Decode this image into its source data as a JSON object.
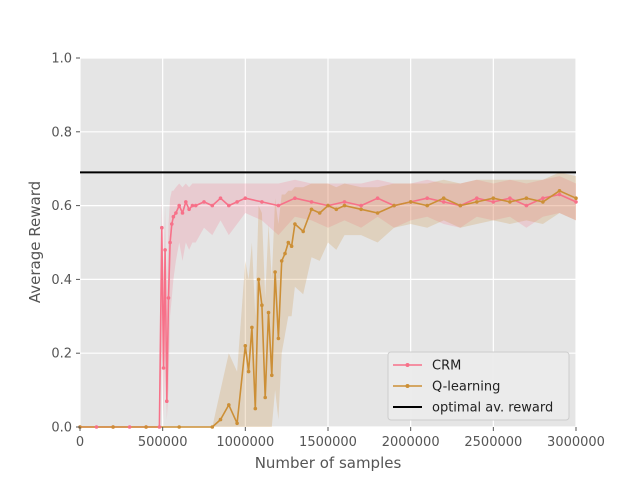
{
  "chart_data": {
    "type": "line",
    "title": "",
    "xlabel": "Number of samples",
    "ylabel": "Average Reward",
    "xlim": [
      0,
      3000000
    ],
    "ylim": [
      0.0,
      1.0
    ],
    "xticks": [
      0,
      500000,
      1000000,
      1500000,
      2000000,
      2500000,
      3000000
    ],
    "xtick_labels": [
      "0",
      "500000",
      "1000000",
      "1500000",
      "2000000",
      "2500000",
      "3000000"
    ],
    "yticks": [
      0.0,
      0.2,
      0.4,
      0.6,
      0.8,
      1.0
    ],
    "ytick_labels": [
      "0.0",
      "0.2",
      "0.4",
      "0.6",
      "0.8",
      "1.0"
    ],
    "grid": true,
    "legend_position": "lower-right",
    "optimal_reward": 0.69,
    "series": [
      {
        "name": "CRM",
        "color": "#f77189",
        "x": [
          0,
          100000,
          200000,
          300000,
          400000,
          480000,
          495000,
          505000,
          515000,
          525000,
          535000,
          545000,
          555000,
          565000,
          580000,
          600000,
          620000,
          640000,
          660000,
          680000,
          700000,
          750000,
          800000,
          850000,
          900000,
          950000,
          1000000,
          1100000,
          1200000,
          1300000,
          1400000,
          1500000,
          1600000,
          1700000,
          1800000,
          1900000,
          2000000,
          2100000,
          2200000,
          2300000,
          2400000,
          2500000,
          2600000,
          2700000,
          2800000,
          2900000,
          3000000
        ],
        "y": [
          0.0,
          0.0,
          0.0,
          0.0,
          0.0,
          0.0,
          0.54,
          0.16,
          0.48,
          0.07,
          0.35,
          0.5,
          0.55,
          0.57,
          0.58,
          0.6,
          0.58,
          0.61,
          0.59,
          0.6,
          0.6,
          0.61,
          0.6,
          0.62,
          0.6,
          0.61,
          0.62,
          0.61,
          0.6,
          0.62,
          0.61,
          0.6,
          0.61,
          0.6,
          0.62,
          0.6,
          0.61,
          0.62,
          0.61,
          0.6,
          0.62,
          0.61,
          0.62,
          0.6,
          0.62,
          0.63,
          0.61
        ],
        "band": [
          [
            0.0,
            0.0
          ],
          [
            0.0,
            0.0
          ],
          [
            0.0,
            0.0
          ],
          [
            0.0,
            0.0
          ],
          [
            0.0,
            0.0
          ],
          [
            0.0,
            0.0
          ],
          [
            0.2,
            0.62
          ],
          [
            0.02,
            0.4
          ],
          [
            0.2,
            0.6
          ],
          [
            0.02,
            0.3
          ],
          [
            0.1,
            0.55
          ],
          [
            0.3,
            0.62
          ],
          [
            0.35,
            0.64
          ],
          [
            0.4,
            0.64
          ],
          [
            0.45,
            0.65
          ],
          [
            0.5,
            0.66
          ],
          [
            0.45,
            0.65
          ],
          [
            0.5,
            0.66
          ],
          [
            0.48,
            0.65
          ],
          [
            0.5,
            0.66
          ],
          [
            0.5,
            0.66
          ],
          [
            0.54,
            0.66
          ],
          [
            0.52,
            0.66
          ],
          [
            0.56,
            0.66
          ],
          [
            0.52,
            0.66
          ],
          [
            0.55,
            0.66
          ],
          [
            0.58,
            0.66
          ],
          [
            0.56,
            0.66
          ],
          [
            0.52,
            0.66
          ],
          [
            0.57,
            0.67
          ],
          [
            0.56,
            0.66
          ],
          [
            0.54,
            0.66
          ],
          [
            0.56,
            0.66
          ],
          [
            0.54,
            0.66
          ],
          [
            0.57,
            0.67
          ],
          [
            0.54,
            0.66
          ],
          [
            0.56,
            0.66
          ],
          [
            0.57,
            0.67
          ],
          [
            0.55,
            0.66
          ],
          [
            0.54,
            0.66
          ],
          [
            0.57,
            0.67
          ],
          [
            0.56,
            0.66
          ],
          [
            0.57,
            0.67
          ],
          [
            0.54,
            0.66
          ],
          [
            0.57,
            0.67
          ],
          [
            0.58,
            0.68
          ],
          [
            0.56,
            0.66
          ]
        ]
      },
      {
        "name": "Q-learning",
        "color": "#cc8f36",
        "x": [
          0,
          200000,
          400000,
          600000,
          800000,
          850000,
          900000,
          950000,
          1000000,
          1020000,
          1040000,
          1060000,
          1080000,
          1100000,
          1120000,
          1140000,
          1160000,
          1180000,
          1200000,
          1220000,
          1240000,
          1260000,
          1280000,
          1300000,
          1350000,
          1400000,
          1450000,
          1500000,
          1550000,
          1600000,
          1700000,
          1800000,
          1900000,
          2000000,
          2100000,
          2200000,
          2300000,
          2400000,
          2500000,
          2600000,
          2700000,
          2800000,
          2900000,
          3000000
        ],
        "y": [
          0.0,
          0.0,
          0.0,
          0.0,
          0.0,
          0.02,
          0.06,
          0.01,
          0.22,
          0.15,
          0.27,
          0.05,
          0.4,
          0.33,
          0.08,
          0.31,
          0.14,
          0.42,
          0.24,
          0.45,
          0.47,
          0.5,
          0.49,
          0.55,
          0.53,
          0.59,
          0.58,
          0.6,
          0.59,
          0.6,
          0.59,
          0.58,
          0.6,
          0.61,
          0.6,
          0.62,
          0.6,
          0.61,
          0.62,
          0.61,
          0.62,
          0.61,
          0.64,
          0.62
        ],
        "band": [
          [
            0.0,
            0.0
          ],
          [
            0.0,
            0.0
          ],
          [
            0.0,
            0.0
          ],
          [
            0.0,
            0.0
          ],
          [
            0.0,
            0.0
          ],
          [
            0.0,
            0.1
          ],
          [
            0.0,
            0.2
          ],
          [
            0.0,
            0.15
          ],
          [
            0.0,
            0.45
          ],
          [
            0.0,
            0.4
          ],
          [
            0.0,
            0.5
          ],
          [
            0.0,
            0.3
          ],
          [
            0.0,
            0.6
          ],
          [
            0.0,
            0.58
          ],
          [
            0.0,
            0.35
          ],
          [
            0.0,
            0.55
          ],
          [
            0.0,
            0.4
          ],
          [
            0.1,
            0.62
          ],
          [
            0.02,
            0.55
          ],
          [
            0.2,
            0.63
          ],
          [
            0.25,
            0.63
          ],
          [
            0.3,
            0.64
          ],
          [
            0.3,
            0.64
          ],
          [
            0.38,
            0.65
          ],
          [
            0.36,
            0.65
          ],
          [
            0.46,
            0.66
          ],
          [
            0.45,
            0.66
          ],
          [
            0.5,
            0.66
          ],
          [
            0.48,
            0.65
          ],
          [
            0.52,
            0.66
          ],
          [
            0.52,
            0.65
          ],
          [
            0.5,
            0.65
          ],
          [
            0.54,
            0.66
          ],
          [
            0.55,
            0.66
          ],
          [
            0.54,
            0.66
          ],
          [
            0.56,
            0.67
          ],
          [
            0.54,
            0.66
          ],
          [
            0.55,
            0.67
          ],
          [
            0.56,
            0.67
          ],
          [
            0.55,
            0.67
          ],
          [
            0.56,
            0.67
          ],
          [
            0.55,
            0.67
          ],
          [
            0.58,
            0.69
          ],
          [
            0.56,
            0.68
          ]
        ]
      },
      {
        "name": "optimal av. reward",
        "color": "#000000",
        "x": [
          0,
          3000000
        ],
        "y": [
          0.69,
          0.69
        ]
      }
    ]
  }
}
